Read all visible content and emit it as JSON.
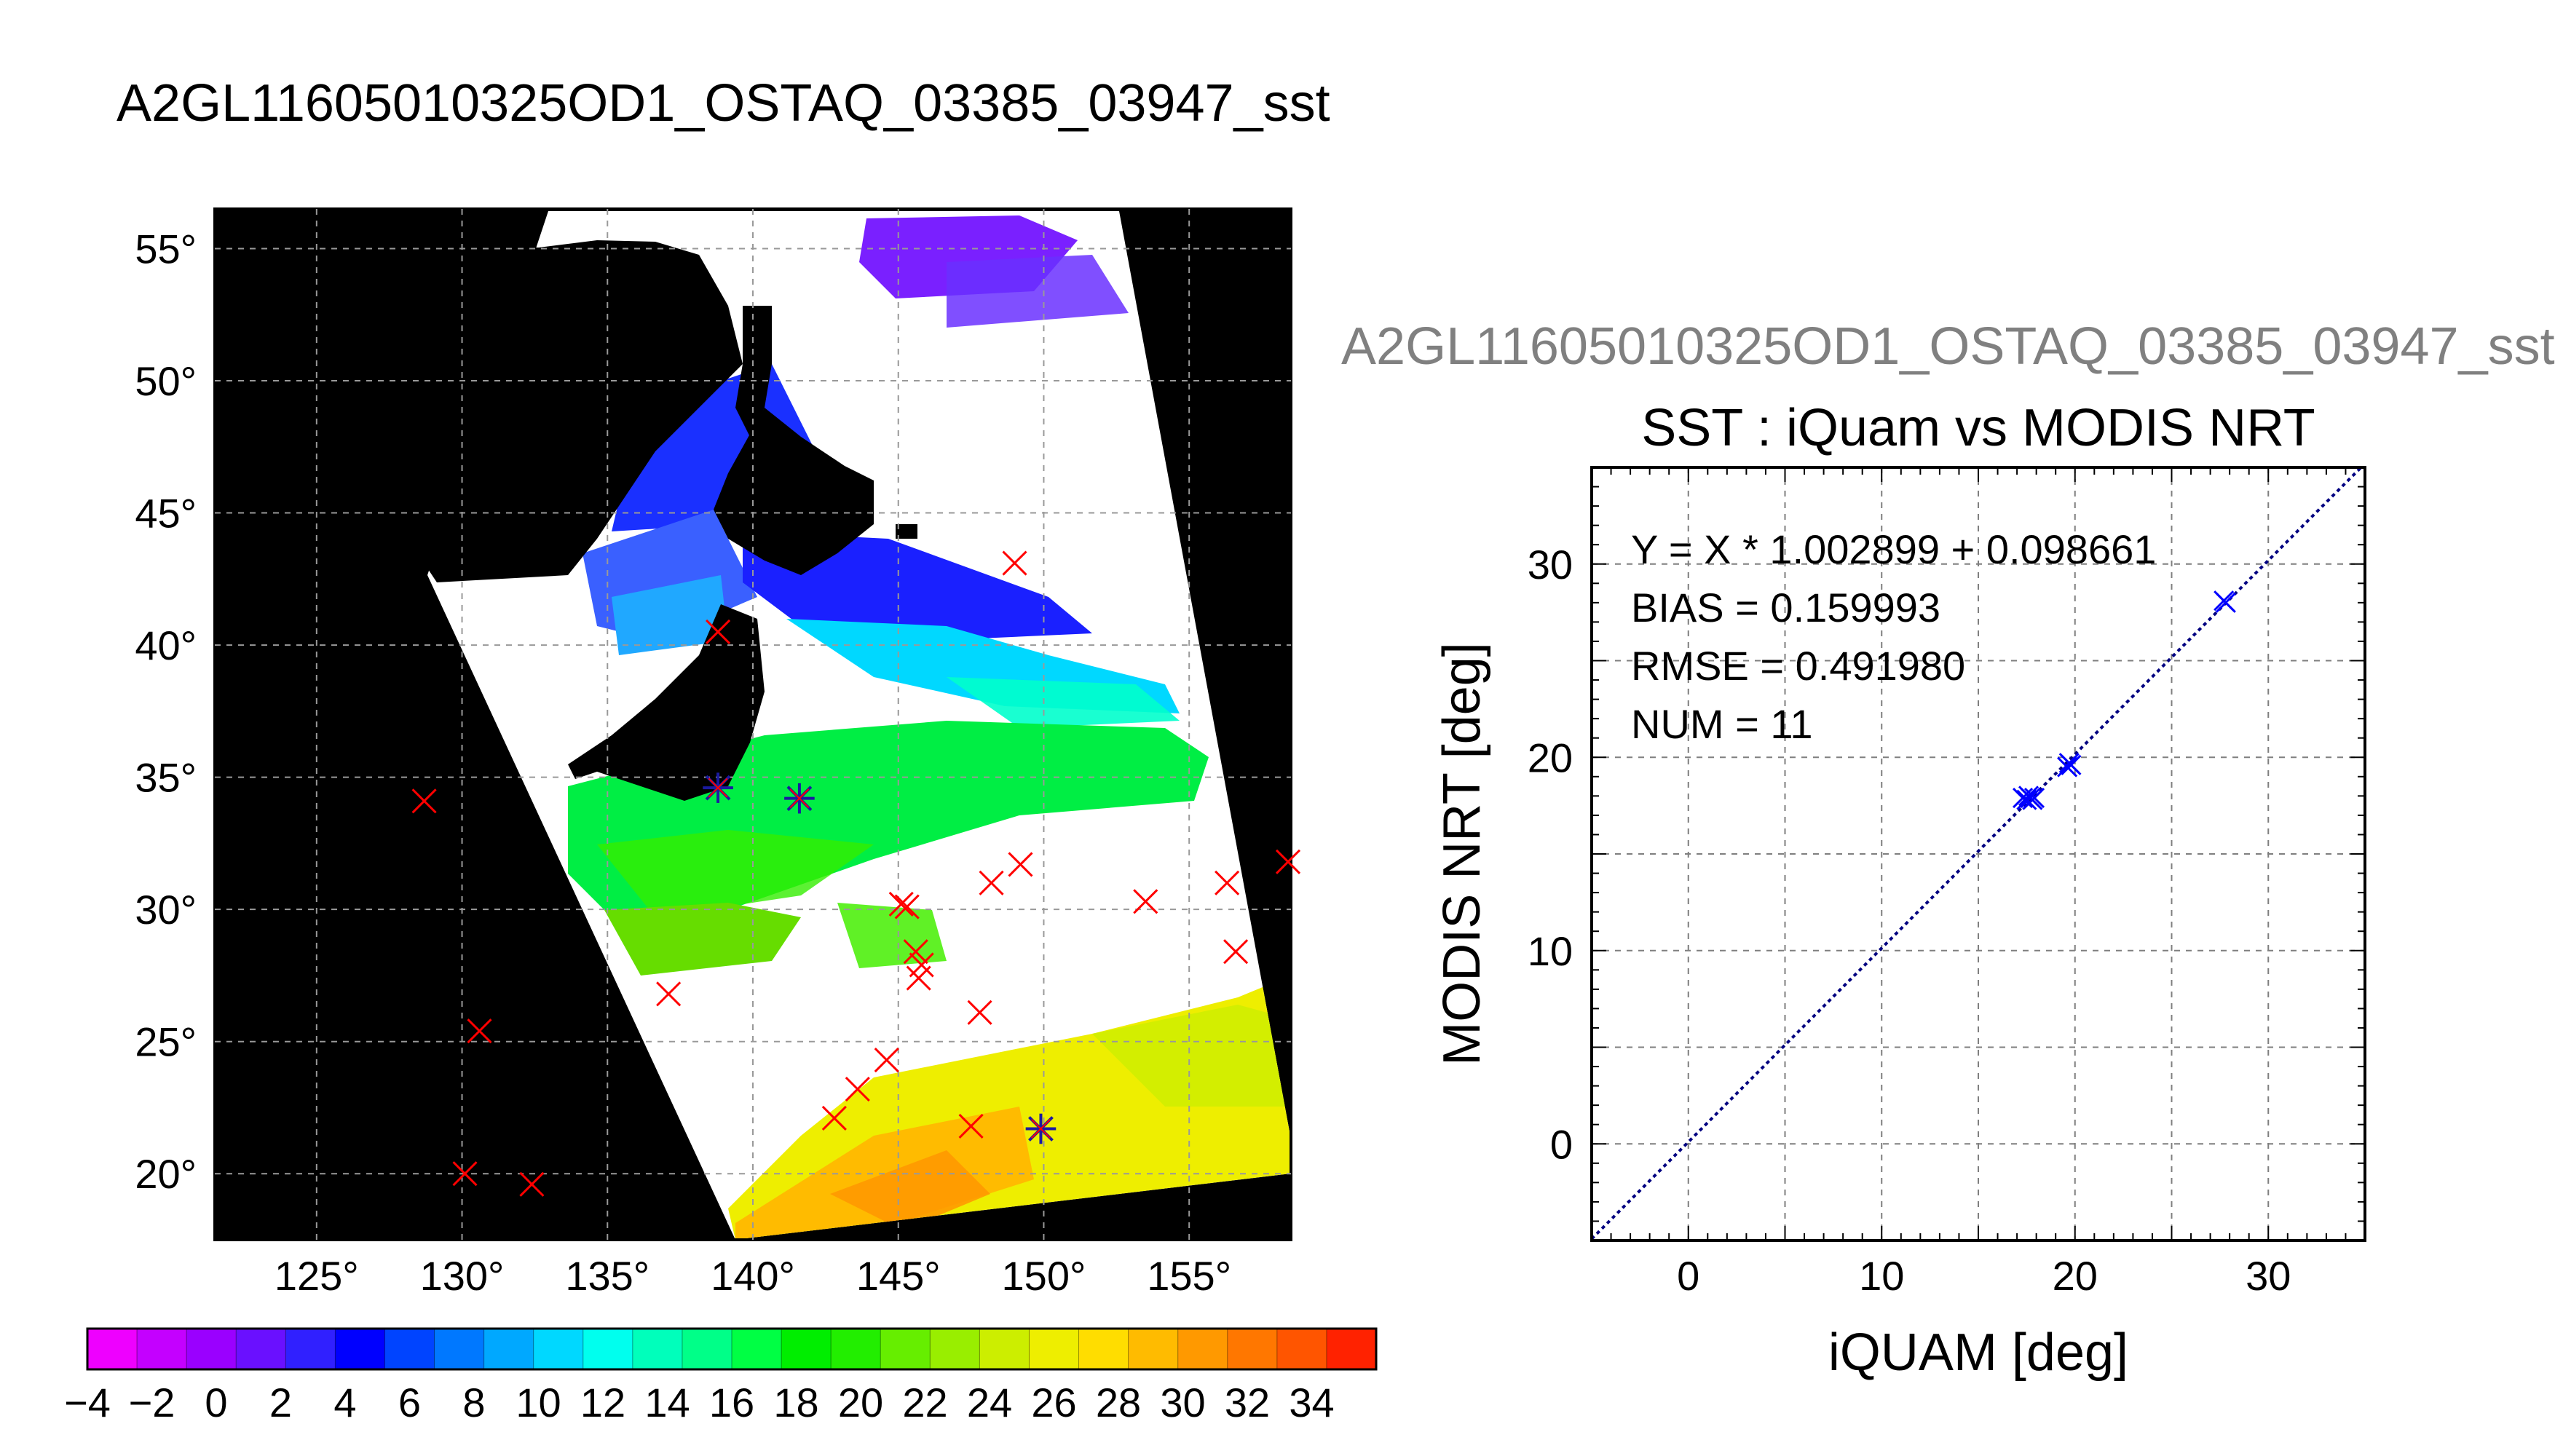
{
  "main_title": "A2GL11605010325OD1_OSTAQ_03385_03947_sst",
  "map": {
    "lat_ticks": [
      "55°",
      "50°",
      "45°",
      "40°",
      "35°",
      "30°",
      "25°",
      "20°"
    ],
    "lon_ticks": [
      "125°",
      "130°",
      "135°",
      "140°",
      "145°",
      "150°",
      "155°"
    ],
    "lat_range": [
      17.5,
      56.5
    ],
    "lon_range": [
      121.5,
      158.5
    ],
    "colors": {
      "background": "#000000",
      "land": "#000000",
      "no_data": "#ffffff",
      "grid": "#999999",
      "marker_cross": "#ff0000",
      "marker_star": "#1a1aa0"
    },
    "observations": [
      {
        "lon": 128.7,
        "lat": 34.1,
        "m": "x"
      },
      {
        "lon": 130.1,
        "lat": 20.0,
        "m": "x"
      },
      {
        "lon": 130.6,
        "lat": 25.4,
        "m": "x"
      },
      {
        "lon": 132.4,
        "lat": 19.6,
        "m": "x"
      },
      {
        "lon": 137.1,
        "lat": 26.8,
        "m": "x"
      },
      {
        "lon": 138.8,
        "lat": 40.5,
        "m": "x"
      },
      {
        "lon": 138.8,
        "lat": 34.6,
        "m": "star"
      },
      {
        "lon": 141.6,
        "lat": 34.2,
        "m": "star"
      },
      {
        "lon": 142.8,
        "lat": 22.1,
        "m": "x"
      },
      {
        "lon": 143.6,
        "lat": 23.2,
        "m": "x"
      },
      {
        "lon": 144.6,
        "lat": 24.3,
        "m": "x"
      },
      {
        "lon": 145.1,
        "lat": 30.2,
        "m": "x"
      },
      {
        "lon": 145.3,
        "lat": 30.1,
        "m": "x"
      },
      {
        "lon": 145.6,
        "lat": 28.4,
        "m": "x"
      },
      {
        "lon": 145.7,
        "lat": 27.4,
        "m": "x"
      },
      {
        "lon": 145.8,
        "lat": 27.9,
        "m": "x"
      },
      {
        "lon": 147.5,
        "lat": 21.8,
        "m": "x"
      },
      {
        "lon": 147.8,
        "lat": 26.1,
        "m": "x"
      },
      {
        "lon": 148.2,
        "lat": 31.0,
        "m": "x"
      },
      {
        "lon": 149.0,
        "lat": 43.1,
        "m": "x"
      },
      {
        "lon": 149.2,
        "lat": 31.7,
        "m": "x"
      },
      {
        "lon": 149.9,
        "lat": 21.7,
        "m": "star"
      },
      {
        "lon": 153.5,
        "lat": 30.3,
        "m": "x"
      },
      {
        "lon": 156.3,
        "lat": 31.0,
        "m": "x"
      },
      {
        "lon": 156.6,
        "lat": 28.4,
        "m": "x"
      },
      {
        "lon": 158.4,
        "lat": 31.8,
        "m": "x"
      }
    ]
  },
  "colorbar": {
    "labels": [
      "−4",
      "−2",
      "0",
      "2",
      "4",
      "6",
      "8",
      "10",
      "12",
      "14",
      "16",
      "18",
      "20",
      "22",
      "24",
      "26",
      "28",
      "30",
      "32",
      "34"
    ],
    "min": -4,
    "max": 36,
    "colors": [
      "#ee00ff",
      "#c400ff",
      "#9a00ff",
      "#6a10ff",
      "#3020ff",
      "#0000ff",
      "#0044ff",
      "#0078ff",
      "#00a8ff",
      "#00d8ff",
      "#00ffee",
      "#00ffbb",
      "#00ff88",
      "#00ff44",
      "#00ee00",
      "#22ee00",
      "#66ee00",
      "#99ee00",
      "#ccee00",
      "#eeee00",
      "#ffdd00",
      "#ffbb00",
      "#ff9900",
      "#ff7700",
      "#ff5500",
      "#ff2200"
    ]
  },
  "scatter_header": "A2GL11605010325OD1_OSTAQ_03385_03947_sst",
  "chart_data": {
    "type": "scatter",
    "title": "SST : iQuam vs MODIS NRT",
    "xlabel": "iQUAM [deg]",
    "ylabel": "MODIS NRT [deg]",
    "xlim": [
      -5,
      35
    ],
    "ylim": [
      -5,
      35
    ],
    "x_ticks": [
      "0",
      "10",
      "20",
      "30"
    ],
    "y_ticks": [
      "0",
      "10",
      "20",
      "30"
    ],
    "x_tick_values": [
      0,
      10,
      20,
      30
    ],
    "y_tick_values": [
      0,
      10,
      20,
      30
    ],
    "grid": true,
    "fit_line": {
      "slope": 1.002899,
      "intercept": 0.098661
    },
    "stats": [
      "Y = X * 1.002899 + 0.098661",
      "BIAS = 0.159993",
      "RMSE = 0.491980",
      "NUM = 11"
    ],
    "series": [
      {
        "x": [
          17.3,
          17.5,
          17.6,
          17.7,
          17.8,
          17.9,
          19.6,
          19.7,
          19.8,
          27.7,
          27.8
        ],
        "y": [
          17.9,
          17.8,
          18.0,
          17.9,
          17.8,
          17.9,
          19.5,
          19.7,
          19.6,
          28.1,
          28.0
        ]
      }
    ],
    "colors": {
      "points": "#0000ff",
      "fit_line": "#000080",
      "grid": "#7f7f7f"
    }
  }
}
